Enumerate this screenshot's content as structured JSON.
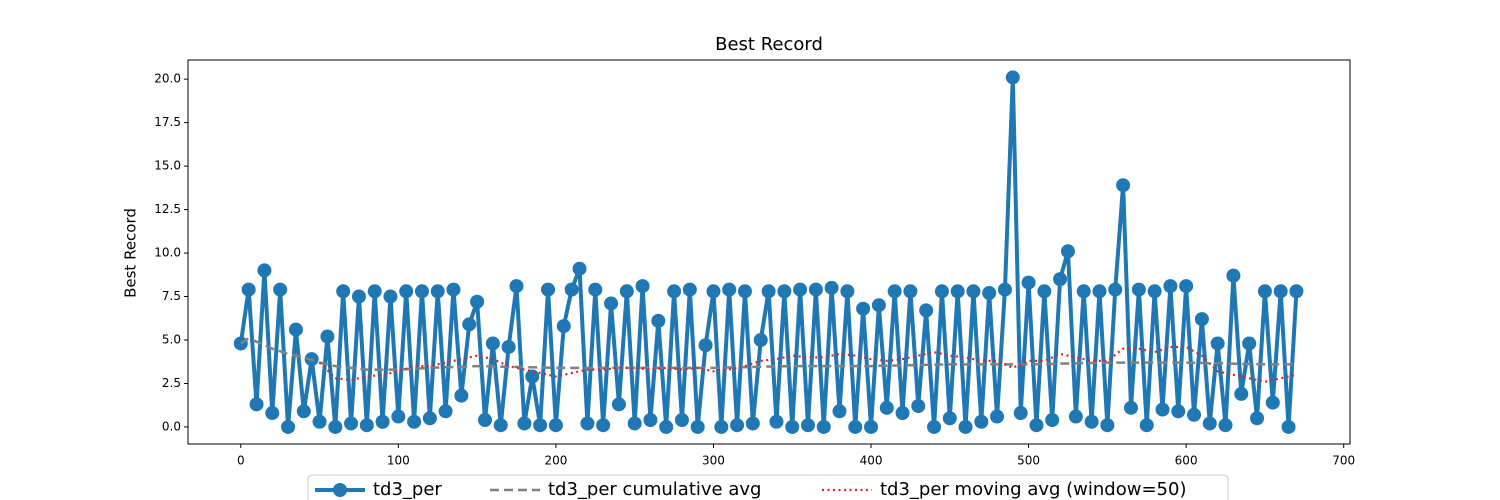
{
  "chart_data": {
    "type": "line",
    "title": "Best Record",
    "y_label": "Best Record",
    "xlim": [
      -33.5,
      704
    ],
    "ylim": [
      -0.98,
      21.1
    ],
    "xticks": [
      0,
      100,
      200,
      300,
      400,
      500,
      600,
      700
    ],
    "yticks": [
      {
        "value": 0,
        "label": "0.0"
      },
      {
        "value": 2.5,
        "label": "2.5"
      },
      {
        "value": 5,
        "label": "5.0"
      },
      {
        "value": 7.5,
        "label": "7.5"
      },
      {
        "value": 10,
        "label": "10.0"
      },
      {
        "value": 12.5,
        "label": "12.5"
      },
      {
        "value": 15,
        "label": "15.0"
      },
      {
        "value": 17.5,
        "label": "17.5"
      },
      {
        "value": 20,
        "label": "20.0"
      }
    ],
    "legend": "lower center",
    "series": [
      {
        "name": "td3_per",
        "color": "#1f77b4",
        "style": "solid-marker",
        "x": [
          0,
          5,
          10,
          15,
          20,
          25,
          30,
          35,
          40,
          45,
          50,
          55,
          60,
          65,
          70,
          75,
          80,
          85,
          90,
          95,
          100,
          105,
          110,
          115,
          120,
          125,
          130,
          135,
          140,
          145,
          150,
          155,
          160,
          165,
          170,
          175,
          180,
          185,
          190,
          195,
          200,
          205,
          210,
          215,
          220,
          225,
          230,
          235,
          240,
          245,
          250,
          255,
          260,
          265,
          270,
          275,
          280,
          285,
          290,
          295,
          300,
          305,
          310,
          315,
          320,
          325,
          330,
          335,
          340,
          345,
          350,
          355,
          360,
          365,
          370,
          375,
          380,
          385,
          390,
          395,
          400,
          405,
          410,
          415,
          420,
          425,
          430,
          435,
          440,
          445,
          450,
          455,
          460,
          465,
          470,
          475,
          480,
          485,
          490,
          495,
          500,
          505,
          510,
          515,
          520,
          525,
          530,
          535,
          540,
          545,
          550,
          555,
          560,
          565,
          570,
          575,
          580,
          585,
          590,
          595,
          600,
          605,
          610,
          615,
          620,
          625,
          630,
          635,
          640,
          645,
          650,
          655,
          660,
          665,
          670
        ],
        "values": [
          4.8,
          7.9,
          1.3,
          9.0,
          0.8,
          7.9,
          0.0,
          5.6,
          0.9,
          3.9,
          0.3,
          5.2,
          0.0,
          7.8,
          0.2,
          7.5,
          0.1,
          7.8,
          0.3,
          7.5,
          0.6,
          7.8,
          0.3,
          7.8,
          0.5,
          7.8,
          0.9,
          7.9,
          1.8,
          5.9,
          7.2,
          0.4,
          4.8,
          0.1,
          4.6,
          8.1,
          0.2,
          2.9,
          0.1,
          7.9,
          0.1,
          5.8,
          7.9,
          9.1,
          0.2,
          7.9,
          0.1,
          7.1,
          1.3,
          7.8,
          0.2,
          8.1,
          0.4,
          6.1,
          0.0,
          7.8,
          0.4,
          7.9,
          0.0,
          4.7,
          7.8,
          0.0,
          7.9,
          0.1,
          7.8,
          0.2,
          5.0,
          7.8,
          0.3,
          7.8,
          0.0,
          7.9,
          0.1,
          7.9,
          0.0,
          8.0,
          0.9,
          7.8,
          0.0,
          6.8,
          0.0,
          7.0,
          1.1,
          7.8,
          0.8,
          7.8,
          1.2,
          6.7,
          0.0,
          7.8,
          0.5,
          7.8,
          0.0,
          7.8,
          0.3,
          7.7,
          0.6,
          7.9,
          20.1,
          0.8,
          8.3,
          0.1,
          7.8,
          0.4,
          8.5,
          10.1,
          0.6,
          7.8,
          0.3,
          7.8,
          0.1,
          7.9,
          13.9,
          1.1,
          7.9,
          0.1,
          7.8,
          1.0,
          8.1,
          0.9,
          8.1,
          0.7,
          6.2,
          0.2,
          4.8,
          0.1,
          8.7,
          1.9,
          4.8,
          0.5,
          7.8,
          1.4,
          7.8,
          0.0,
          7.8
        ]
      },
      {
        "name": "td3_per cumulative avg",
        "color": "#808080",
        "style": "dashed",
        "x": [
          0,
          5,
          10,
          20,
          30,
          40,
          50,
          60,
          80,
          100,
          120,
          150,
          200,
          250,
          300,
          350,
          400,
          450,
          500,
          550,
          600,
          650,
          670
        ],
        "values": [
          4.8,
          5.1,
          4.9,
          4.5,
          4.2,
          4.0,
          3.7,
          3.5,
          3.3,
          3.3,
          3.4,
          3.5,
          3.4,
          3.4,
          3.4,
          3.5,
          3.5,
          3.6,
          3.6,
          3.7,
          3.7,
          3.6,
          3.6
        ]
      },
      {
        "name": "td3_per moving avg (window=50)",
        "color": "#d62728",
        "style": "dotted",
        "x": [
          50,
          60,
          70,
          80,
          90,
          100,
          110,
          120,
          130,
          140,
          150,
          160,
          170,
          180,
          190,
          200,
          210,
          220,
          230,
          240,
          250,
          260,
          270,
          280,
          290,
          300,
          310,
          320,
          330,
          340,
          350,
          360,
          370,
          380,
          390,
          400,
          410,
          420,
          430,
          440,
          450,
          460,
          470,
          480,
          490,
          500,
          510,
          520,
          530,
          540,
          550,
          560,
          570,
          580,
          590,
          600,
          610,
          620,
          630,
          640,
          650,
          660,
          670
        ],
        "values": [
          3.7,
          2.8,
          2.7,
          2.9,
          3.0,
          3.2,
          3.5,
          3.5,
          3.7,
          3.9,
          4.1,
          3.9,
          3.5,
          3.3,
          3.1,
          2.9,
          3.1,
          3.3,
          3.3,
          3.4,
          3.4,
          3.3,
          3.4,
          3.3,
          3.4,
          3.2,
          3.3,
          3.5,
          3.8,
          3.9,
          4.1,
          4.0,
          4.0,
          4.2,
          4.1,
          3.9,
          3.8,
          3.9,
          4.1,
          4.3,
          4.1,
          4.0,
          3.8,
          3.8,
          3.4,
          3.8,
          3.8,
          4.2,
          4.0,
          3.8,
          3.8,
          4.5,
          4.5,
          4.3,
          4.6,
          4.6,
          4.1,
          3.2,
          3.0,
          2.8,
          2.6,
          2.8,
          3.0
        ]
      }
    ]
  }
}
